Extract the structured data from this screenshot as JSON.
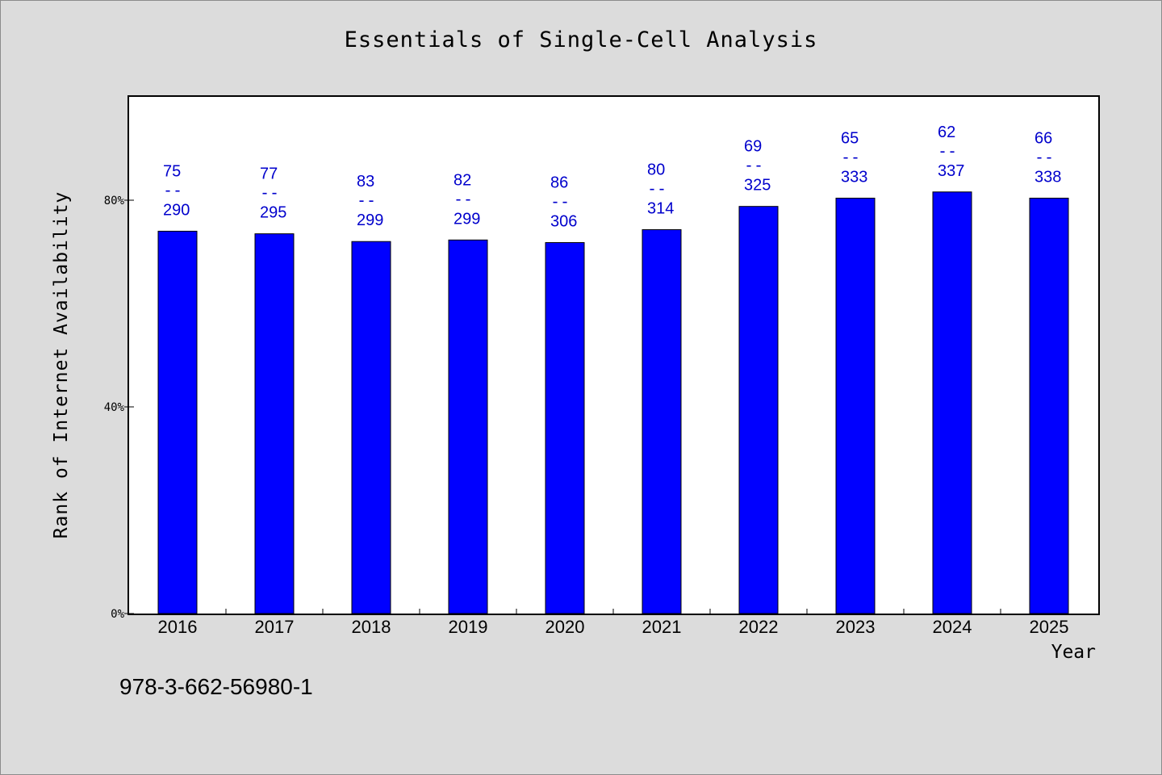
{
  "chart_data": {
    "type": "bar",
    "title": "Essentials of Single-Cell Analysis",
    "xlabel": "Year",
    "ylabel": "Rank of Internet Availability",
    "categories": [
      "2016",
      "2017",
      "2018",
      "2019",
      "2020",
      "2021",
      "2022",
      "2023",
      "2024",
      "2025"
    ],
    "values": [
      74,
      73.5,
      72,
      72.3,
      71.8,
      74.3,
      78.8,
      80.4,
      81.6,
      80.4
    ],
    "value_unit": "%",
    "ylim": [
      0,
      100
    ],
    "yticks": [
      {
        "value": 0,
        "label": "0%"
      },
      {
        "value": 40,
        "label": "40%"
      },
      {
        "value": 80,
        "label": "80%"
      }
    ],
    "bar_labels": [
      {
        "top": "75",
        "sep": "--",
        "bottom": "290"
      },
      {
        "top": "77",
        "sep": "--",
        "bottom": "295"
      },
      {
        "top": "83",
        "sep": "--",
        "bottom": "299"
      },
      {
        "top": "82",
        "sep": "--",
        "bottom": "299"
      },
      {
        "top": "86",
        "sep": "--",
        "bottom": "306"
      },
      {
        "top": "80",
        "sep": "--",
        "bottom": "314"
      },
      {
        "top": "69",
        "sep": "--",
        "bottom": "325"
      },
      {
        "top": "65",
        "sep": "--",
        "bottom": "333"
      },
      {
        "top": "62",
        "sep": "--",
        "bottom": "337"
      },
      {
        "top": "66",
        "sep": "--",
        "bottom": "338"
      }
    ],
    "grid": false,
    "legend": "none",
    "colors": {
      "bar": "#0000ff",
      "bar_label": "#0000cc",
      "plot_background": "#ffffff",
      "page_background": "#dcdcdc"
    }
  },
  "footer": {
    "isbn": "978-3-662-56980-1"
  }
}
